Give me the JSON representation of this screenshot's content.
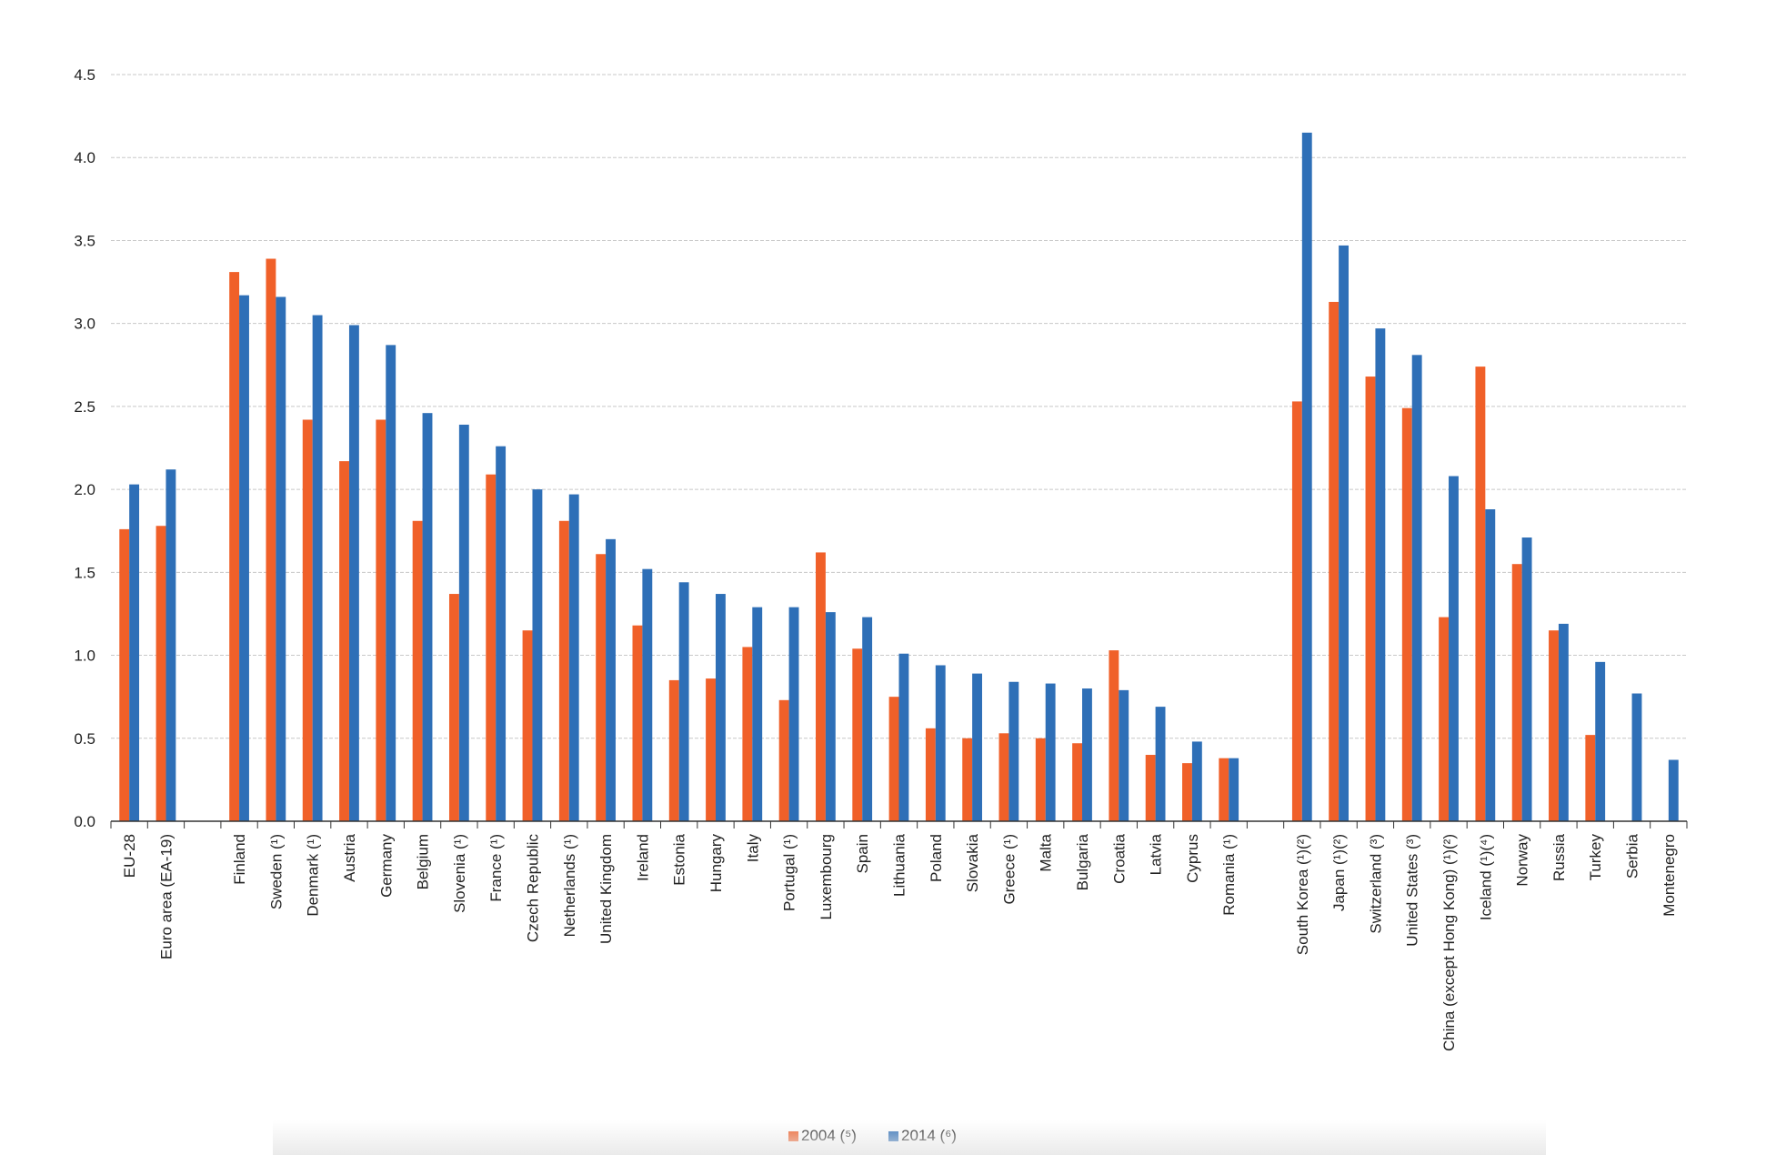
{
  "chart_data": {
    "type": "bar",
    "title": "",
    "xlabel": "",
    "ylabel": "",
    "ylim": [
      0,
      4.5
    ],
    "yticks": [
      "0.0",
      "0.5",
      "1.0",
      "1.5",
      "2.0",
      "2.5",
      "3.0",
      "3.5",
      "4.0",
      "4.5"
    ],
    "grid": true,
    "legend_position": "bottom-center",
    "categories": [
      "EU-28",
      "Euro area (EA-19)",
      "Finland",
      "Sweden (¹)",
      "Denmark (¹)",
      "Austria",
      "Germany",
      "Belgium",
      "Slovenia (¹)",
      "France (¹)",
      "Czech Republic",
      "Netherlands (¹)",
      "United Kingdom",
      "Ireland",
      "Estonia",
      "Hungary",
      "Italy",
      "Portugal (¹)",
      "Luxembourg",
      "Spain",
      "Lithuania",
      "Poland",
      "Slovakia",
      "Greece (¹)",
      "Malta",
      "Bulgaria",
      "Croatia",
      "Latvia",
      "Cyprus",
      "Romania (¹)",
      "South Korea (¹)(²)",
      "Japan (¹)(²)",
      "Switzerland (³)",
      "United States (³)",
      "China (except Hong Kong) (¹)(²)",
      "Iceland (¹)(⁴)",
      "Norway",
      "Russia",
      "Turkey",
      "Serbia",
      "Montenegro"
    ],
    "groups": [
      2,
      28,
      11
    ],
    "series": [
      {
        "name": "2004 (⁵)",
        "color": "#f06029",
        "values": [
          1.76,
          1.78,
          3.31,
          3.39,
          2.42,
          2.17,
          2.42,
          1.81,
          1.37,
          2.09,
          1.15,
          1.81,
          1.61,
          1.18,
          0.85,
          0.86,
          1.05,
          0.73,
          1.62,
          1.04,
          0.75,
          0.56,
          0.5,
          0.53,
          0.5,
          0.47,
          1.03,
          0.4,
          0.35,
          0.38,
          2.53,
          3.13,
          2.68,
          2.49,
          1.23,
          2.74,
          1.55,
          1.15,
          0.52,
          null,
          null
        ]
      },
      {
        "name": "2014 (⁶)",
        "color": "#2e6fb7",
        "values": [
          2.03,
          2.12,
          3.17,
          3.16,
          3.05,
          2.99,
          2.87,
          2.46,
          2.39,
          2.26,
          2.0,
          1.97,
          1.7,
          1.52,
          1.44,
          1.37,
          1.29,
          1.29,
          1.26,
          1.23,
          1.01,
          0.94,
          0.89,
          0.84,
          0.83,
          0.8,
          0.79,
          0.69,
          0.48,
          0.38,
          4.15,
          3.47,
          2.97,
          2.81,
          2.08,
          1.88,
          1.71,
          1.19,
          0.96,
          0.77,
          0.37
        ]
      }
    ]
  }
}
